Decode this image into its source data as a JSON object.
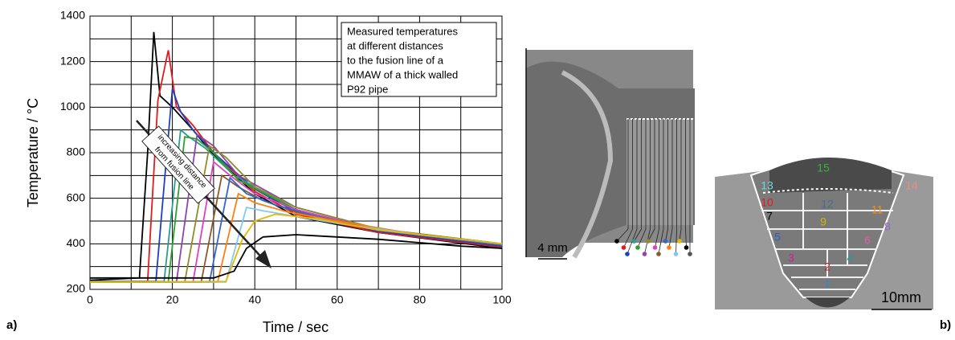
{
  "chart_data": {
    "type": "line",
    "ylabel": "Temperature  / °C",
    "xlabel": "Time  / sec",
    "xlim": [
      0,
      100
    ],
    "xticks": [
      0,
      20,
      40,
      60,
      80,
      100
    ],
    "ylim": [
      200,
      1400
    ],
    "yticks": [
      200,
      400,
      600,
      800,
      1000,
      1200,
      1400
    ],
    "grid": true,
    "annotation": [
      "Measured temperatures",
      "at different distances",
      "to the fusion line of a",
      "MMAW of a thick walled",
      "P92 pipe"
    ],
    "arrow_label": [
      "increasing distance",
      "from fusion line"
    ],
    "series": [
      {
        "color": "#000000",
        "x": [
          0,
          12,
          14,
          15.5,
          17,
          20,
          25,
          30,
          40,
          50,
          70,
          100
        ],
        "values": [
          240,
          250,
          800,
          1330,
          1050,
          1000,
          900,
          790,
          620,
          520,
          450,
          380
        ]
      },
      {
        "color": "#e41a1c",
        "x": [
          0,
          14,
          16.5,
          19,
          21,
          25,
          30,
          40,
          50,
          70,
          100
        ],
        "values": [
          235,
          235,
          1030,
          1250,
          1000,
          920,
          800,
          630,
          530,
          450,
          385
        ]
      },
      {
        "color": "#1f3fbf",
        "x": [
          0,
          16,
          20,
          22,
          25,
          30,
          40,
          50,
          70,
          100
        ],
        "values": [
          235,
          235,
          1080,
          980,
          900,
          800,
          640,
          540,
          455,
          390
        ]
      },
      {
        "color": "#2a9d8f",
        "x": [
          0,
          18,
          22,
          24,
          28,
          35,
          50,
          70,
          100
        ],
        "values": [
          235,
          235,
          900,
          870,
          820,
          700,
          550,
          460,
          395
        ]
      },
      {
        "color": "#2ca02c",
        "x": [
          0,
          19,
          23,
          26,
          30,
          36,
          50,
          70,
          100
        ],
        "values": [
          232,
          232,
          870,
          860,
          800,
          680,
          550,
          460,
          395
        ]
      },
      {
        "color": "#8e44ad",
        "x": [
          0,
          21,
          26,
          30,
          36,
          50,
          70,
          100
        ],
        "values": [
          232,
          232,
          880,
          830,
          700,
          560,
          465,
          400
        ]
      },
      {
        "color": "#8c8c2c",
        "x": [
          0,
          23,
          29,
          33,
          40,
          50,
          70,
          100
        ],
        "values": [
          232,
          232,
          830,
          780,
          650,
          560,
          465,
          400
        ]
      },
      {
        "color": "#e040c0",
        "x": [
          0,
          25,
          30,
          34,
          40,
          50,
          70,
          100
        ],
        "values": [
          232,
          232,
          760,
          700,
          620,
          550,
          460,
          395
        ]
      },
      {
        "color": "#8b5a2b",
        "x": [
          0,
          27,
          32,
          36,
          42,
          50,
          70,
          100
        ],
        "values": [
          232,
          232,
          700,
          650,
          590,
          540,
          460,
          395
        ]
      },
      {
        "color": "#3366cc",
        "x": [
          0,
          29,
          34,
          38,
          45,
          55,
          70,
          100
        ],
        "values": [
          232,
          232,
          690,
          620,
          570,
          520,
          460,
          395
        ]
      },
      {
        "color": "#ff7f0e",
        "x": [
          0,
          31,
          36,
          40,
          48,
          60,
          80,
          100
        ],
        "values": [
          232,
          232,
          620,
          580,
          540,
          500,
          440,
          400
        ]
      },
      {
        "color": "#7fc8f8",
        "x": [
          0,
          33,
          38,
          42,
          50,
          60,
          80,
          100
        ],
        "values": [
          232,
          232,
          560,
          545,
          520,
          490,
          440,
          400
        ]
      },
      {
        "color": "#e6b800",
        "x": [
          0,
          33,
          37,
          40,
          45,
          55,
          70,
          100
        ],
        "values": [
          232,
          235,
          420,
          500,
          530,
          510,
          460,
          400
        ]
      },
      {
        "color": "#000000",
        "x": [
          0,
          30,
          35,
          38,
          42,
          50,
          70,
          90,
          100
        ],
        "values": [
          250,
          250,
          280,
          380,
          430,
          440,
          420,
          390,
          380
        ]
      }
    ]
  },
  "panel_labels": [
    "a)",
    "b)"
  ],
  "micrograph": {
    "scale_left": "4 mm",
    "scale_right": "10mm",
    "passes": [
      {
        "label": "15",
        "color": "#3cb043"
      },
      {
        "label": "14",
        "color": "#e88a8a"
      },
      {
        "label": "13",
        "color": "#6fd6d6"
      },
      {
        "label": "10",
        "color": "#e41a1c"
      },
      {
        "label": "12",
        "color": "#4a6a8a"
      },
      {
        "label": "11",
        "color": "#ff8c1a"
      },
      {
        "label": "7",
        "color": "#000000"
      },
      {
        "label": "9",
        "color": "#d4b800"
      },
      {
        "label": "8",
        "color": "#8e6ac8"
      },
      {
        "label": "5",
        "color": "#2a5fbf"
      },
      {
        "label": "6",
        "color": "#e060a0"
      },
      {
        "label": "3",
        "color": "#d02090"
      },
      {
        "label": "4",
        "color": "#2a9d8f"
      },
      {
        "label": "2",
        "color": "#c0202a"
      },
      {
        "label": "1",
        "color": "#3a7fd0"
      }
    ]
  }
}
